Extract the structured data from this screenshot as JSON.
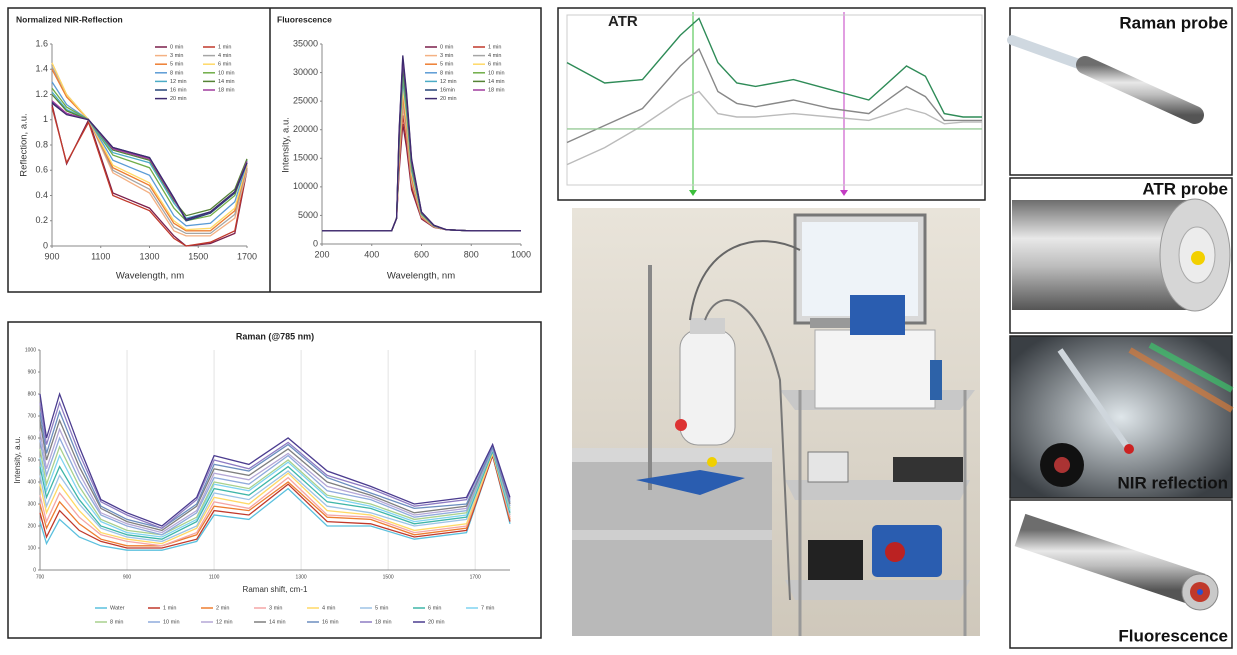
{
  "chart_data": [
    {
      "type": "line",
      "title": "Normalized NIR-Reflection",
      "x_label": "Wavelength, nm",
      "y_label": "Reflection, a.u.",
      "x": [
        900,
        960,
        1050,
        1150,
        1300,
        1400,
        1450,
        1550,
        1650,
        1700
      ],
      "xlim": [
        900,
        1700
      ],
      "xticks": [
        900,
        1100,
        1300,
        1500,
        1700
      ],
      "ylim": [
        0,
        1.6
      ],
      "yticks": [
        0,
        0.2,
        0.4,
        0.6,
        0.8,
        1,
        1.2,
        1.4,
        1.6
      ],
      "grid": false,
      "legend": "upper right",
      "series": [
        {
          "name": "0 min",
          "color": "#7b1f4b",
          "values": [
            1.12,
            0.65,
            1.0,
            0.42,
            0.3,
            0.08,
            0.0,
            0.02,
            0.1,
            0.6
          ]
        },
        {
          "name": "1 min",
          "color": "#c0392b",
          "values": [
            1.1,
            0.66,
            0.98,
            0.4,
            0.28,
            0.06,
            0.0,
            0.03,
            0.12,
            0.62
          ]
        },
        {
          "name": "3 min",
          "color": "#f4b183",
          "values": [
            1.45,
            1.2,
            1.0,
            0.58,
            0.42,
            0.12,
            0.08,
            0.08,
            0.22,
            0.6
          ]
        },
        {
          "name": "4 min",
          "color": "#a5a5a5",
          "values": [
            1.42,
            1.2,
            1.0,
            0.6,
            0.45,
            0.15,
            0.1,
            0.1,
            0.25,
            0.62
          ]
        },
        {
          "name": "5 min",
          "color": "#ed7d31",
          "values": [
            1.4,
            1.18,
            1.0,
            0.62,
            0.48,
            0.18,
            0.12,
            0.12,
            0.28,
            0.64
          ]
        },
        {
          "name": "6 min",
          "color": "#ffd966",
          "values": [
            1.45,
            1.2,
            1.0,
            0.64,
            0.5,
            0.2,
            0.13,
            0.14,
            0.3,
            0.65
          ]
        },
        {
          "name": "8 min",
          "color": "#5b9bd5",
          "values": [
            1.3,
            1.12,
            1.0,
            0.68,
            0.56,
            0.24,
            0.16,
            0.18,
            0.35,
            0.66
          ]
        },
        {
          "name": "10 min",
          "color": "#70ad47",
          "values": [
            1.25,
            1.1,
            1.0,
            0.72,
            0.62,
            0.3,
            0.2,
            0.24,
            0.4,
            0.68
          ]
        },
        {
          "name": "12 min",
          "color": "#4bacc6",
          "values": [
            1.22,
            1.08,
            1.0,
            0.74,
            0.66,
            0.34,
            0.22,
            0.27,
            0.43,
            0.68
          ]
        },
        {
          "name": "14 min",
          "color": "#548235",
          "values": [
            1.2,
            1.07,
            1.0,
            0.76,
            0.68,
            0.36,
            0.24,
            0.29,
            0.45,
            0.69
          ]
        },
        {
          "name": "16 min",
          "color": "#264478",
          "values": [
            1.14,
            1.05,
            1.0,
            0.78,
            0.7,
            0.38,
            0.2,
            0.26,
            0.42,
            0.66
          ]
        },
        {
          "name": "18 min",
          "color": "#a03c9e",
          "values": [
            1.15,
            1.05,
            1.0,
            0.77,
            0.69,
            0.37,
            0.21,
            0.27,
            0.43,
            0.67
          ]
        },
        {
          "name": "20 min",
          "color": "#3c2a6e",
          "values": [
            1.13,
            1.04,
            1.0,
            0.78,
            0.7,
            0.38,
            0.21,
            0.27,
            0.43,
            0.66
          ]
        }
      ]
    },
    {
      "type": "line",
      "title": "Fluorescence",
      "x_label": "Wavelength, nm",
      "y_label": "Intensity, a.u.",
      "x": [
        200,
        480,
        500,
        510,
        525,
        540,
        560,
        600,
        650,
        700,
        800,
        1000
      ],
      "xlim": [
        200,
        1000
      ],
      "xticks": [
        200,
        400,
        600,
        800,
        1000
      ],
      "ylim": [
        0,
        35000
      ],
      "yticks": [
        0,
        5000,
        10000,
        15000,
        20000,
        25000,
        30000,
        35000
      ],
      "grid": false,
      "legend": "upper right",
      "series": [
        {
          "name": "0 min",
          "color": "#7b1f4b",
          "values": [
            2300,
            2300,
            4500,
            12600,
            21000,
            16800,
            9500,
            4400,
            2900,
            2500,
            2300,
            2300
          ]
        },
        {
          "name": "1 min",
          "color": "#c0392b",
          "values": [
            2300,
            2300,
            4500,
            13500,
            22500,
            18000,
            10100,
            4550,
            2980,
            2500,
            2300,
            2300
          ]
        },
        {
          "name": "3 min",
          "color": "#f4b183",
          "values": [
            2300,
            2300,
            4500,
            14400,
            24000,
            19200,
            10800,
            4700,
            3000,
            2500,
            2300,
            2300
          ]
        },
        {
          "name": "4 min",
          "color": "#a5a5a5",
          "values": [
            2300,
            2300,
            4500,
            15000,
            25000,
            20000,
            11200,
            4800,
            3050,
            2500,
            2300,
            2300
          ]
        },
        {
          "name": "5 min",
          "color": "#ed7d31",
          "values": [
            2300,
            2300,
            4500,
            15600,
            26000,
            20800,
            11700,
            4900,
            3080,
            2500,
            2300,
            2300
          ]
        },
        {
          "name": "6 min",
          "color": "#ffd966",
          "values": [
            2300,
            2300,
            4500,
            16200,
            27000,
            21600,
            12200,
            5000,
            3110,
            2500,
            2300,
            2300
          ]
        },
        {
          "name": "8 min",
          "color": "#5b9bd5",
          "values": [
            2300,
            2300,
            4500,
            17100,
            28500,
            22800,
            12800,
            5150,
            3150,
            2500,
            2300,
            2300
          ]
        },
        {
          "name": "10 min",
          "color": "#70ad47",
          "values": [
            2300,
            2300,
            4500,
            17700,
            29500,
            23600,
            13300,
            5250,
            3190,
            2500,
            2300,
            2300
          ]
        },
        {
          "name": "12 min",
          "color": "#4bacc6",
          "values": [
            2300,
            2300,
            4500,
            18300,
            30500,
            24400,
            13700,
            5350,
            3220,
            2500,
            2300,
            2300
          ]
        },
        {
          "name": "14 min",
          "color": "#548235",
          "values": [
            2300,
            2300,
            4500,
            18600,
            31000,
            24800,
            14000,
            5400,
            3230,
            2500,
            2300,
            2300
          ]
        },
        {
          "name": "16min",
          "color": "#264478",
          "values": [
            2300,
            2300,
            4500,
            19200,
            32000,
            25600,
            14400,
            5500,
            3260,
            2500,
            2300,
            2300
          ]
        },
        {
          "name": "18 min",
          "color": "#a03c9e",
          "values": [
            2300,
            2300,
            4500,
            19500,
            32500,
            26000,
            14600,
            5550,
            3280,
            2500,
            2300,
            2300
          ]
        },
        {
          "name": "20 min",
          "color": "#3c2a6e",
          "values": [
            2300,
            2300,
            4500,
            19800,
            33000,
            26400,
            14900,
            5600,
            3290,
            2500,
            2300,
            2300
          ]
        }
      ]
    },
    {
      "type": "line",
      "title": "Raman (@785 nm)",
      "x_label": "Raman shift, cm-1",
      "y_label": "Intensity, a.u.",
      "x": [
        700,
        715,
        745,
        790,
        840,
        900,
        980,
        1060,
        1100,
        1180,
        1270,
        1360,
        1460,
        1560,
        1680,
        1740,
        1780
      ],
      "xlim": [
        700,
        1780
      ],
      "xticks": [
        700,
        900,
        1100,
        1300,
        1500,
        1700
      ],
      "ylim": [
        0,
        1000
      ],
      "yticks": [
        0,
        100,
        200,
        300,
        400,
        500,
        600,
        700,
        800,
        900,
        1000
      ],
      "grid": true,
      "legend": "bottom",
      "series": [
        {
          "name": "Water",
          "color": "#5bc0de",
          "values": [
            220,
            120,
            230,
            150,
            110,
            90,
            90,
            130,
            250,
            230,
            370,
            200,
            200,
            140,
            170,
            520,
            210
          ]
        },
        {
          "name": "1 min",
          "color": "#c0392b",
          "values": [
            260,
            150,
            270,
            180,
            130,
            100,
            100,
            140,
            270,
            250,
            390,
            220,
            210,
            150,
            180,
            520,
            220
          ]
        },
        {
          "name": "2 min",
          "color": "#ed7d31",
          "values": [
            300,
            190,
            310,
            210,
            140,
            110,
            110,
            160,
            290,
            270,
            400,
            240,
            230,
            160,
            190,
            530,
            230
          ]
        },
        {
          "name": "3 min",
          "color": "#f4a6a6",
          "values": [
            340,
            220,
            350,
            240,
            160,
            130,
            110,
            170,
            310,
            280,
            420,
            250,
            240,
            170,
            200,
            530,
            240
          ]
        },
        {
          "name": "4 min",
          "color": "#ffd966",
          "values": [
            390,
            260,
            390,
            270,
            170,
            140,
            120,
            190,
            330,
            300,
            440,
            270,
            250,
            180,
            210,
            530,
            250
          ]
        },
        {
          "name": "5 min",
          "color": "#9dc3e6",
          "values": [
            430,
            290,
            430,
            300,
            190,
            150,
            130,
            200,
            350,
            320,
            450,
            290,
            260,
            200,
            230,
            540,
            250
          ]
        },
        {
          "name": "6 min",
          "color": "#3fb6a8",
          "values": [
            470,
            330,
            470,
            320,
            200,
            160,
            140,
            220,
            370,
            340,
            470,
            310,
            280,
            210,
            240,
            540,
            260
          ]
        },
        {
          "name": "7 min",
          "color": "#7fd3f0",
          "values": [
            510,
            360,
            520,
            350,
            220,
            170,
            150,
            230,
            390,
            360,
            490,
            330,
            290,
            220,
            250,
            550,
            270
          ]
        },
        {
          "name": "8 min",
          "color": "#a9d18e",
          "values": [
            550,
            390,
            560,
            380,
            230,
            180,
            160,
            240,
            400,
            370,
            500,
            340,
            300,
            230,
            260,
            550,
            280
          ]
        },
        {
          "name": "10 min",
          "color": "#8faadc",
          "values": [
            590,
            430,
            600,
            410,
            250,
            200,
            160,
            260,
            420,
            390,
            520,
            360,
            320,
            240,
            270,
            550,
            290
          ]
        },
        {
          "name": "12 min",
          "color": "#b4a7d6",
          "values": [
            630,
            460,
            640,
            440,
            260,
            210,
            170,
            270,
            440,
            410,
            530,
            380,
            330,
            250,
            280,
            560,
            300
          ]
        },
        {
          "name": "14 min",
          "color": "#7f7f7f",
          "values": [
            680,
            500,
            680,
            470,
            280,
            220,
            180,
            290,
            460,
            430,
            550,
            400,
            340,
            260,
            290,
            560,
            300
          ]
        },
        {
          "name": "16 min",
          "color": "#6c8ebf",
          "values": [
            720,
            530,
            720,
            500,
            290,
            230,
            190,
            300,
            480,
            450,
            570,
            420,
            350,
            280,
            300,
            560,
            310
          ]
        },
        {
          "name": "18 min",
          "color": "#8e7cc3",
          "values": [
            760,
            570,
            760,
            530,
            310,
            250,
            190,
            320,
            500,
            460,
            580,
            430,
            370,
            290,
            320,
            570,
            320
          ]
        },
        {
          "name": "20 min",
          "color": "#4b3c8f",
          "values": [
            800,
            600,
            800,
            560,
            320,
            260,
            200,
            330,
            520,
            480,
            600,
            450,
            380,
            300,
            330,
            570,
            330
          ]
        }
      ]
    },
    {
      "type": "line",
      "title": "ATR",
      "x": [
        700,
        800,
        900,
        1000,
        1050,
        1100,
        1150,
        1200,
        1300,
        1400,
        1500,
        1600,
        1650,
        1700,
        1750,
        1800
      ],
      "xlim": [
        700,
        1800
      ],
      "ylim": [
        0,
        1
      ],
      "grid": false,
      "series": [
        {
          "color": "#2e8b57",
          "values": [
            0.72,
            0.6,
            0.62,
            0.88,
            0.98,
            0.72,
            0.6,
            0.58,
            0.62,
            0.56,
            0.5,
            0.7,
            0.64,
            0.42,
            0.4,
            0.4
          ]
        },
        {
          "color": "#888888",
          "values": [
            0.25,
            0.35,
            0.45,
            0.7,
            0.8,
            0.55,
            0.48,
            0.46,
            0.5,
            0.45,
            0.42,
            0.58,
            0.52,
            0.38,
            0.38,
            0.38
          ]
        },
        {
          "color": "#bbbbbb",
          "values": [
            0.12,
            0.22,
            0.35,
            0.5,
            0.55,
            0.42,
            0.4,
            0.4,
            0.42,
            0.4,
            0.38,
            0.45,
            0.42,
            0.36,
            0.37,
            0.37
          ]
        },
        {
          "color": "#99cc99",
          "values": [
            0.33,
            0.33,
            0.33,
            0.33,
            0.33,
            0.33,
            0.33,
            0.33,
            0.33,
            0.33,
            0.33,
            0.33,
            0.33,
            0.33,
            0.33,
            0.33
          ]
        }
      ]
    }
  ],
  "photos": [
    "Raman probe",
    "ATR probe",
    "NIR reflection",
    "Fluorescence"
  ]
}
